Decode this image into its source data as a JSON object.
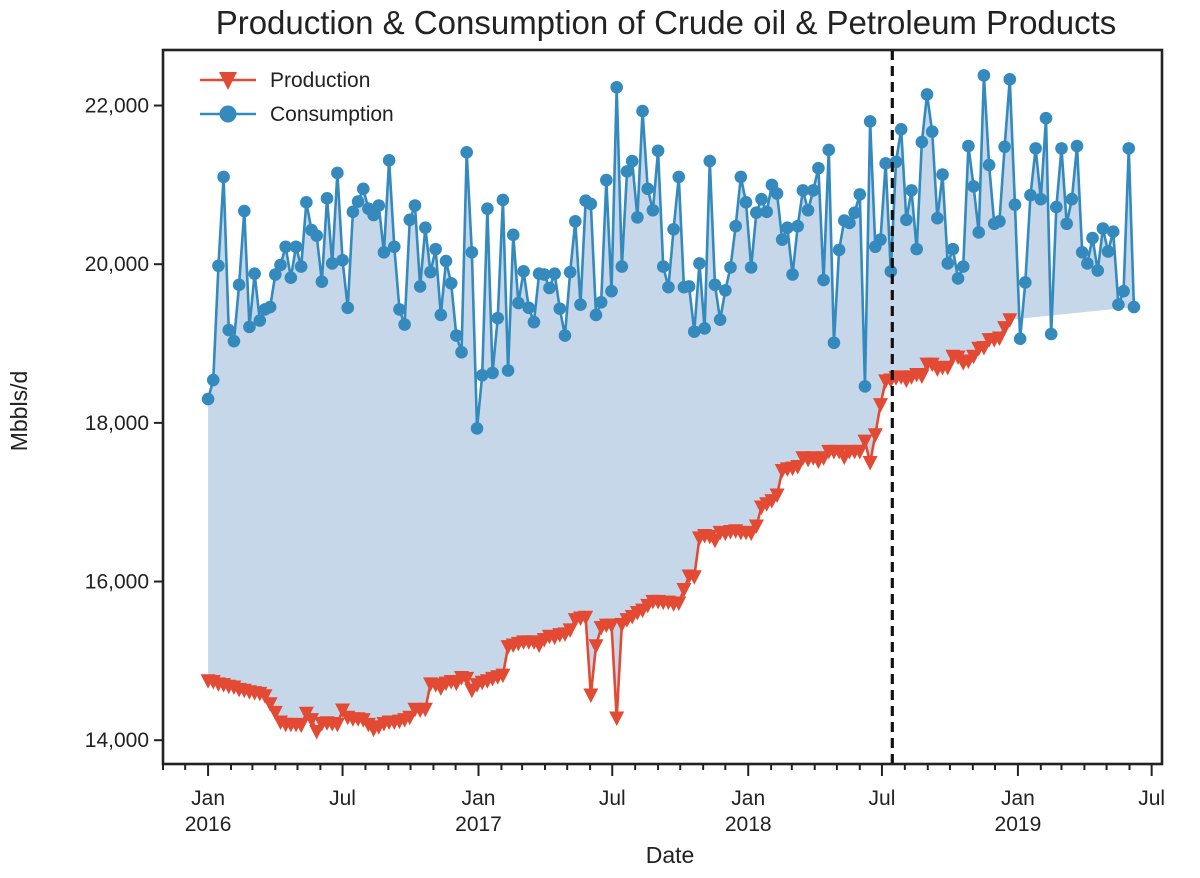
{
  "chart_data": {
    "type": "line",
    "title": "Production & Consumption of Crude oil & Petroleum Products",
    "xlabel": "Date",
    "ylabel": "Mbbls/d",
    "x_range": [
      "2015-11-01",
      "2019-07-15"
    ],
    "ylim": [
      13700,
      22700
    ],
    "y_ticks": [
      14000,
      16000,
      18000,
      20000,
      22000
    ],
    "y_tick_labels": [
      "14,000",
      "16,000",
      "18,000",
      "20,000",
      "22,000"
    ],
    "x_major_ticks": [
      {
        "date": "2016-01-01",
        "label": "Jan\n2016"
      },
      {
        "date": "2016-07-01",
        "label": "Jul"
      },
      {
        "date": "2017-01-01",
        "label": "Jan\n2017"
      },
      {
        "date": "2017-07-01",
        "label": "Jul"
      },
      {
        "date": "2018-01-01",
        "label": "Jan\n2018"
      },
      {
        "date": "2018-07-01",
        "label": "Jul"
      },
      {
        "date": "2019-01-01",
        "label": "Jan\n2019"
      },
      {
        "date": "2019-07-01",
        "label": "Jul"
      }
    ],
    "vline_date": "2018-07-15",
    "legend_position": "top-left",
    "grid": false,
    "fill_between": true,
    "x_start": "2016-01-01",
    "x_step_days": 7,
    "series": [
      {
        "name": "Production",
        "color": "#e24a33",
        "marker": "triangle-down",
        "values": [
          14750,
          14740,
          14710,
          14700,
          14680,
          14670,
          14640,
          14630,
          14610,
          14600,
          14590,
          14560,
          14460,
          14350,
          14230,
          14200,
          14200,
          14200,
          14190,
          14340,
          14260,
          14110,
          14210,
          14220,
          14210,
          14200,
          14380,
          14290,
          14270,
          14270,
          14260,
          14200,
          14140,
          14170,
          14210,
          14230,
          14230,
          14240,
          14260,
          14290,
          14390,
          14380,
          14390,
          14710,
          14700,
          14660,
          14720,
          14740,
          14720,
          14790,
          14780,
          14630,
          14700,
          14730,
          14750,
          14780,
          14800,
          14820,
          15180,
          15200,
          15220,
          15240,
          15240,
          15240,
          15200,
          15270,
          15310,
          15300,
          15330,
          15340,
          15390,
          15520,
          15540,
          15550,
          14570,
          15190,
          15420,
          15450,
          15450,
          14280,
          15460,
          15520,
          15560,
          15610,
          15640,
          15700,
          15750,
          15750,
          15740,
          15740,
          15720,
          15730,
          15900,
          16070,
          16060,
          16550,
          16580,
          16570,
          16520,
          16620,
          16610,
          16630,
          16640,
          16620,
          16620,
          16610,
          16700,
          16940,
          16980,
          17020,
          17090,
          17400,
          17420,
          17430,
          17450,
          17560,
          17540,
          17560,
          17520,
          17560,
          17640,
          17640,
          17640,
          17570,
          17640,
          17640,
          17640,
          17770,
          17500,
          17850,
          18230,
          18530,
          18540,
          18570,
          18580,
          18540,
          18580,
          18610,
          18590,
          18740,
          18740,
          18680,
          18700,
          18700,
          18840,
          18830,
          18760,
          18780,
          18840,
          18940,
          18950,
          19050,
          19050,
          19070,
          19200,
          19300
        ]
      },
      {
        "name": "Consumption",
        "color": "#348abd",
        "marker": "circle",
        "values": [
          18300,
          18540,
          19980,
          21100,
          19170,
          19030,
          19740,
          20670,
          19210,
          19880,
          19290,
          19430,
          19460,
          19870,
          19990,
          20220,
          19830,
          20220,
          19970,
          20780,
          20430,
          20360,
          19780,
          20830,
          20010,
          21150,
          20050,
          19450,
          20660,
          20790,
          20950,
          20700,
          20620,
          20740,
          20150,
          21310,
          20220,
          19430,
          19240,
          20560,
          20740,
          19720,
          20460,
          19900,
          20190,
          19360,
          20040,
          19760,
          19100,
          18890,
          21410,
          20150,
          17930,
          18600,
          20700,
          18630,
          19320,
          20810,
          18660,
          20370,
          19510,
          19910,
          19450,
          19270,
          19880,
          19870,
          19700,
          19880,
          19440,
          19100,
          19900,
          20540,
          19490,
          20800,
          20760,
          19360,
          19520,
          21060,
          19660,
          22230,
          19970,
          21170,
          21300,
          20590,
          21930,
          20950,
          20680,
          21430,
          19970,
          19710,
          20440,
          21100,
          19710,
          19720,
          19150,
          20010,
          19190,
          21300,
          19740,
          19300,
          19670,
          19960,
          20480,
          21100,
          20780,
          19960,
          20650,
          20820,
          20660,
          21000,
          20890,
          20310,
          20460,
          19870,
          20480,
          20930,
          20680,
          20930,
          21210,
          19800,
          21440,
          19010,
          20180,
          20550,
          20520,
          20650,
          20880,
          18460,
          21800,
          20220,
          20310,
          21270,
          19910,
          21290,
          21700,
          20560,
          20930,
          20190,
          21540,
          22140,
          21670,
          20580,
          21130,
          20010,
          20190,
          19820,
          19970,
          21490,
          20980,
          20400,
          22380,
          21250,
          20510,
          20540,
          21480,
          22330,
          20750,
          19060,
          19770,
          20870,
          21460,
          20820,
          21840,
          19120,
          20720,
          21460,
          20510,
          20820,
          21490,
          20150,
          20010,
          20330,
          19920,
          20450,
          20160,
          20410,
          19490,
          19660,
          21460,
          19460
        ]
      }
    ]
  }
}
